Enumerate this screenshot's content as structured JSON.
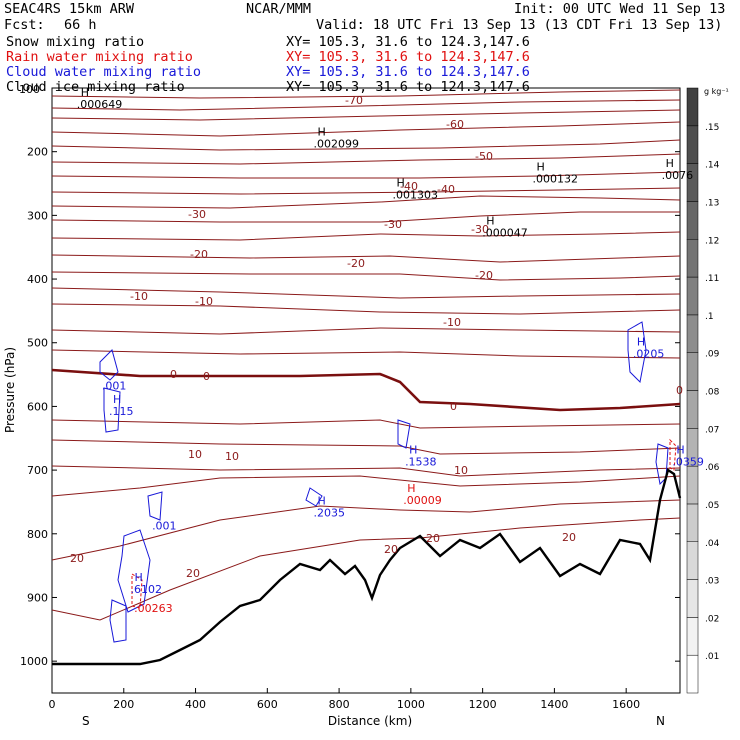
{
  "header": {
    "model": "SEAC4RS 15km ARW",
    "center": "NCAR/MMM",
    "init": "Init: 00 UTC Wed 11 Sep 13",
    "fcst_label": "Fcst:",
    "fcst_value": "66 h",
    "valid": "Valid: 18 UTC Fri 13 Sep 13 (13 CDT Fri 13 Sep 13)"
  },
  "fields": [
    {
      "label": "Snow mixing ratio",
      "xy": "XY= 105.3, 31.6 to 124.3,147.6",
      "color": "#000000"
    },
    {
      "label": "Rain water mixing ratio",
      "xy": "XY= 105.3, 31.6 to 124.3,147.6",
      "color": "#e01010"
    },
    {
      "label": "Cloud water mixing ratio",
      "xy": "XY= 105.3, 31.6 to 124.3,147.6",
      "color": "#1818d8"
    },
    {
      "label": "Cloud ice mixing ratio",
      "xy": "XY= 105.3, 31.6 to 124.3,147.6",
      "color": "#000000"
    }
  ],
  "chart_data": {
    "type": "cross-section contour",
    "xlabel": "Distance (km)",
    "ylabel": "Pressure (hPa)",
    "xlim": [
      0,
      1750
    ],
    "ylim": [
      1050,
      100
    ],
    "x_ticks": [
      "0",
      "200",
      "400",
      "600",
      "800",
      "1000",
      "1200",
      "1400",
      "1600"
    ],
    "y_ticks": [
      "200",
      "300",
      "400",
      "500",
      "600",
      "700",
      "800",
      "900",
      "1000"
    ],
    "y_top_label": "100",
    "end_labels": {
      "left": "S",
      "right": "N"
    },
    "colorbar": {
      "unit": "g kg⁻¹",
      "ticks": [
        ".01",
        ".02",
        ".03",
        ".04",
        ".05",
        ".06",
        ".07",
        ".08",
        ".09",
        ".1",
        ".11",
        ".12",
        ".13",
        ".14",
        ".15"
      ]
    },
    "isotherm_labels": [
      "-70",
      "-60",
      "-50",
      "-40",
      "-40",
      "-30",
      "-30",
      "-30",
      "-20",
      "-20",
      "-20",
      "-10",
      "-10",
      "-10",
      "0",
      "0",
      "0",
      "10",
      "10",
      "10",
      "20",
      "20",
      "20",
      "20",
      "20",
      "0"
    ],
    "maxima": [
      {
        "marker": "H",
        "value": ".000649",
        "x": 80,
        "p": 128,
        "color": "#000000"
      },
      {
        "marker": "H",
        "value": ".002099",
        "x": 740,
        "p": 190,
        "color": "#000000"
      },
      {
        "marker": "H",
        "value": ".001303",
        "x": 960,
        "p": 270,
        "color": "#000000"
      },
      {
        "marker": "H",
        "value": ".000047",
        "x": 1210,
        "p": 330,
        "color": "#000000"
      },
      {
        "marker": "H",
        "value": ".000132",
        "x": 1350,
        "p": 245,
        "color": "#000000"
      },
      {
        "marker": "H",
        "value": ".0076",
        "x": 1710,
        "p": 240,
        "color": "#000000"
      },
      {
        "marker": "",
        "value": ".001",
        "x": 150,
        "p": 570,
        "color": "#1818d8"
      },
      {
        "marker": "H",
        "value": ".115",
        "x": 170,
        "p": 610,
        "color": "#1818d8"
      },
      {
        "marker": "H",
        "value": ".0205",
        "x": 1630,
        "p": 520,
        "color": "#1818d8"
      },
      {
        "marker": "H",
        "value": ".1538",
        "x": 995,
        "p": 690,
        "color": "#1818d8"
      },
      {
        "marker": "H",
        "value": ".00009",
        "x": 990,
        "p": 750,
        "color": "#e01010"
      },
      {
        "marker": "H",
        "value": ".0359",
        "x": 1740,
        "p": 690,
        "color": "#1818d8"
      },
      {
        "marker": "H",
        "value": ".2035",
        "x": 740,
        "p": 770,
        "color": "#1818d8"
      },
      {
        "marker": "",
        "value": ".001",
        "x": 290,
        "p": 790,
        "color": "#1818d8"
      },
      {
        "marker": "H",
        "value": ".6102",
        "x": 230,
        "p": 890,
        "color": "#1818d8"
      },
      {
        "marker": "",
        "value": ".00263",
        "x": 240,
        "p": 920,
        "color": "#e01010"
      }
    ]
  }
}
